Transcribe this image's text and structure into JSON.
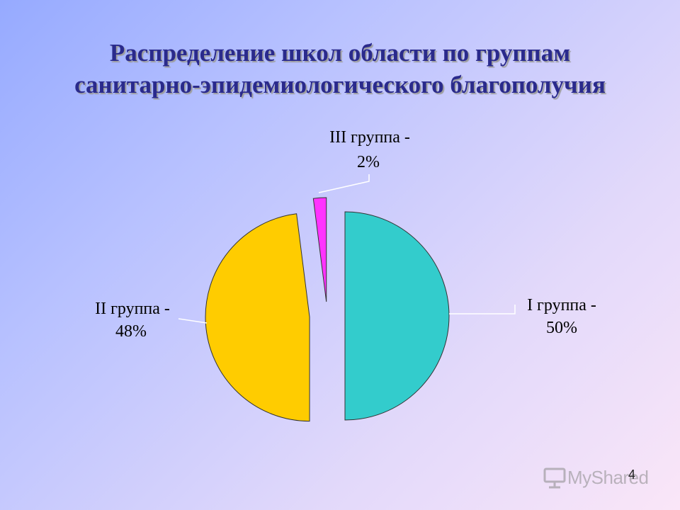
{
  "slide": {
    "title_line1": "Распределение школ области по группам",
    "title_line2": "санитарно-эпидемиологического благополучия",
    "page_number": "4",
    "watermark": "MyShared"
  },
  "colors": {
    "title": "#2a2a8c",
    "group1": "#33cccc",
    "group2": "#ffcc00",
    "group3": "#ff33ff"
  },
  "chart_data": {
    "type": "pie",
    "exploded": true,
    "slices": [
      {
        "name": "I группа",
        "value": 50,
        "label_line1": "I группа -",
        "label_line2": "50%"
      },
      {
        "name": "II группа",
        "value": 48,
        "label_line1": "II группа -",
        "label_line2": "48%"
      },
      {
        "name": "III группа",
        "value": 2,
        "label_line1": "III группа -",
        "label_line2": "2%"
      }
    ]
  }
}
